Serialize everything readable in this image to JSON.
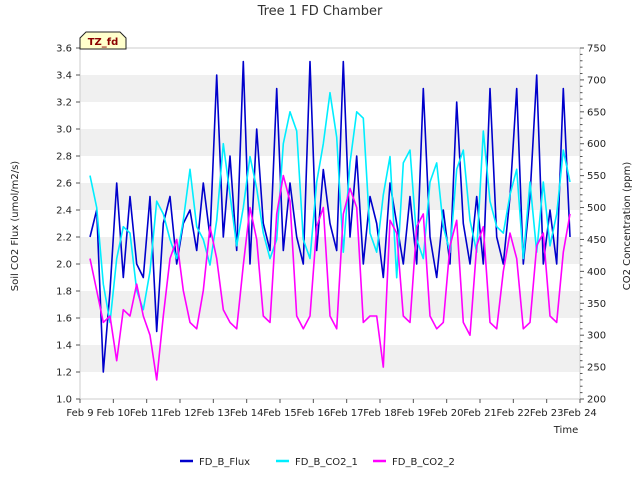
{
  "chart_data": {
    "type": "line",
    "title": "Tree 1 FD Chamber",
    "xlabel": "Time",
    "ylabel_left": "Soil CO2 Flux (umol/m2/s)",
    "ylabel_right": "CO2 Concentration (ppm)",
    "site_label": "TZ_fd",
    "xlim": [
      0,
      15
    ],
    "x_ticks": [
      {
        "x": 0,
        "label": "Feb 9"
      },
      {
        "x": 1,
        "label": "Feb 10"
      },
      {
        "x": 2,
        "label": "Feb 11"
      },
      {
        "x": 3,
        "label": "Feb 12"
      },
      {
        "x": 4,
        "label": "Feb 13"
      },
      {
        "x": 5,
        "label": "Feb 14"
      },
      {
        "x": 6,
        "label": "Feb 15"
      },
      {
        "x": 7,
        "label": "Feb 16"
      },
      {
        "x": 8,
        "label": "Feb 17"
      },
      {
        "x": 9,
        "label": "Feb 18"
      },
      {
        "x": 10,
        "label": "Feb 19"
      },
      {
        "x": 11,
        "label": "Feb 20"
      },
      {
        "x": 12,
        "label": "Feb 21"
      },
      {
        "x": 13,
        "label": "Feb 22"
      },
      {
        "x": 14,
        "label": "Feb 23"
      },
      {
        "x": 15,
        "label": "Feb 24"
      }
    ],
    "ylim_left": [
      1.0,
      3.6
    ],
    "yticks_left": [
      "1.0",
      "1.2",
      "1.4",
      "1.6",
      "1.8",
      "2.0",
      "2.2",
      "2.4",
      "2.6",
      "2.8",
      "3.0",
      "3.2",
      "3.4",
      "3.6"
    ],
    "ylim_right": [
      200,
      750
    ],
    "yticks_right": [
      "200",
      "250",
      "300",
      "350",
      "400",
      "450",
      "500",
      "550",
      "600",
      "650",
      "700",
      "750"
    ],
    "grid": "horizontal bands",
    "legend_position": "bottom-center",
    "series": [
      {
        "name": "FD_B_Flux",
        "axis": "left",
        "color": "#0000cc",
        "x": [
          0.3,
          0.5,
          0.7,
          0.9,
          1.1,
          1.3,
          1.5,
          1.7,
          1.9,
          2.1,
          2.3,
          2.5,
          2.7,
          2.9,
          3.1,
          3.3,
          3.5,
          3.7,
          3.9,
          4.1,
          4.3,
          4.5,
          4.7,
          4.9,
          5.1,
          5.3,
          5.5,
          5.7,
          5.9,
          6.1,
          6.3,
          6.5,
          6.7,
          6.9,
          7.1,
          7.3,
          7.5,
          7.7,
          7.9,
          8.1,
          8.3,
          8.5,
          8.7,
          8.9,
          9.1,
          9.3,
          9.5,
          9.7,
          9.9,
          10.1,
          10.3,
          10.5,
          10.7,
          10.9,
          11.1,
          11.3,
          11.5,
          11.7,
          11.9,
          12.1,
          12.3,
          12.5,
          12.7,
          12.9,
          13.1,
          13.3,
          13.5,
          13.7,
          13.9,
          14.1,
          14.3,
          14.5,
          14.7
        ],
        "y": [
          2.2,
          2.4,
          1.2,
          1.8,
          2.6,
          1.9,
          2.5,
          2.0,
          1.9,
          2.5,
          1.5,
          2.3,
          2.5,
          2.0,
          2.3,
          2.4,
          2.1,
          2.6,
          2.2,
          3.4,
          2.2,
          2.8,
          2.1,
          3.5,
          2.0,
          3.0,
          2.3,
          2.1,
          3.3,
          2.1,
          2.6,
          2.2,
          2.0,
          3.5,
          2.1,
          2.7,
          2.3,
          2.1,
          3.5,
          2.2,
          2.8,
          2.0,
          2.5,
          2.3,
          1.9,
          2.6,
          2.3,
          2.0,
          2.5,
          2.0,
          3.3,
          2.2,
          1.9,
          2.4,
          2.0,
          3.2,
          2.3,
          2.0,
          2.5,
          2.0,
          3.3,
          2.2,
          2.0,
          2.5,
          3.3,
          2.0,
          2.5,
          3.4,
          2.0,
          2.4,
          2.0,
          3.3,
          2.2
        ]
      },
      {
        "name": "FD_B_CO2_1",
        "axis": "right",
        "color": "#00eeff",
        "x": [
          0.3,
          0.5,
          0.7,
          0.9,
          1.1,
          1.3,
          1.5,
          1.7,
          1.9,
          2.1,
          2.3,
          2.5,
          2.7,
          2.9,
          3.1,
          3.3,
          3.5,
          3.7,
          3.9,
          4.1,
          4.3,
          4.5,
          4.7,
          4.9,
          5.1,
          5.3,
          5.5,
          5.7,
          5.9,
          6.1,
          6.3,
          6.5,
          6.7,
          6.9,
          7.1,
          7.3,
          7.5,
          7.7,
          7.9,
          8.1,
          8.3,
          8.5,
          8.7,
          8.9,
          9.1,
          9.3,
          9.5,
          9.7,
          9.9,
          10.1,
          10.3,
          10.5,
          10.7,
          10.9,
          11.1,
          11.3,
          11.5,
          11.7,
          11.9,
          12.1,
          12.3,
          12.5,
          12.7,
          12.9,
          13.1,
          13.3,
          13.5,
          13.7,
          13.9,
          14.1,
          14.3,
          14.5,
          14.7
        ],
        "y": [
          550,
          500,
          380,
          320,
          420,
          470,
          460,
          370,
          340,
          400,
          510,
          490,
          450,
          420,
          480,
          560,
          470,
          450,
          410,
          480,
          600,
          520,
          440,
          500,
          580,
          530,
          460,
          420,
          450,
          600,
          650,
          620,
          450,
          420,
          540,
          600,
          680,
          610,
          430,
          570,
          650,
          640,
          460,
          430,
          520,
          580,
          390,
          570,
          590,
          450,
          420,
          540,
          570,
          470,
          430,
          560,
          590,
          480,
          430,
          620,
          510,
          470,
          460,
          520,
          560,
          420,
          540,
          430,
          540,
          440,
          490,
          590,
          540
        ]
      },
      {
        "name": "FD_B_CO2_2",
        "axis": "right",
        "color": "#ff00ff",
        "x": [
          0.3,
          0.5,
          0.7,
          0.9,
          1.1,
          1.3,
          1.5,
          1.7,
          1.9,
          2.1,
          2.3,
          2.5,
          2.7,
          2.9,
          3.1,
          3.3,
          3.5,
          3.7,
          3.9,
          4.1,
          4.3,
          4.5,
          4.7,
          4.9,
          5.1,
          5.3,
          5.5,
          5.7,
          5.9,
          6.1,
          6.3,
          6.5,
          6.7,
          6.9,
          7.1,
          7.3,
          7.5,
          7.7,
          7.9,
          8.1,
          8.3,
          8.5,
          8.7,
          8.9,
          9.1,
          9.3,
          9.5,
          9.7,
          9.9,
          10.1,
          10.3,
          10.5,
          10.7,
          10.9,
          11.1,
          11.3,
          11.5,
          11.7,
          11.9,
          12.1,
          12.3,
          12.5,
          12.7,
          12.9,
          13.1,
          13.3,
          13.5,
          13.7,
          13.9,
          14.1,
          14.3,
          14.5,
          14.7
        ],
        "y": [
          420,
          370,
          320,
          330,
          260,
          340,
          330,
          380,
          330,
          300,
          230,
          330,
          420,
          450,
          370,
          320,
          310,
          370,
          470,
          420,
          340,
          320,
          310,
          410,
          500,
          450,
          330,
          320,
          490,
          550,
          510,
          330,
          310,
          330,
          470,
          500,
          330,
          310,
          490,
          530,
          500,
          320,
          330,
          330,
          250,
          480,
          460,
          330,
          320,
          470,
          490,
          330,
          310,
          320,
          440,
          480,
          320,
          300,
          440,
          470,
          320,
          310,
          400,
          460,
          420,
          310,
          320,
          440,
          460,
          330,
          320,
          430,
          490
        ]
      }
    ]
  }
}
